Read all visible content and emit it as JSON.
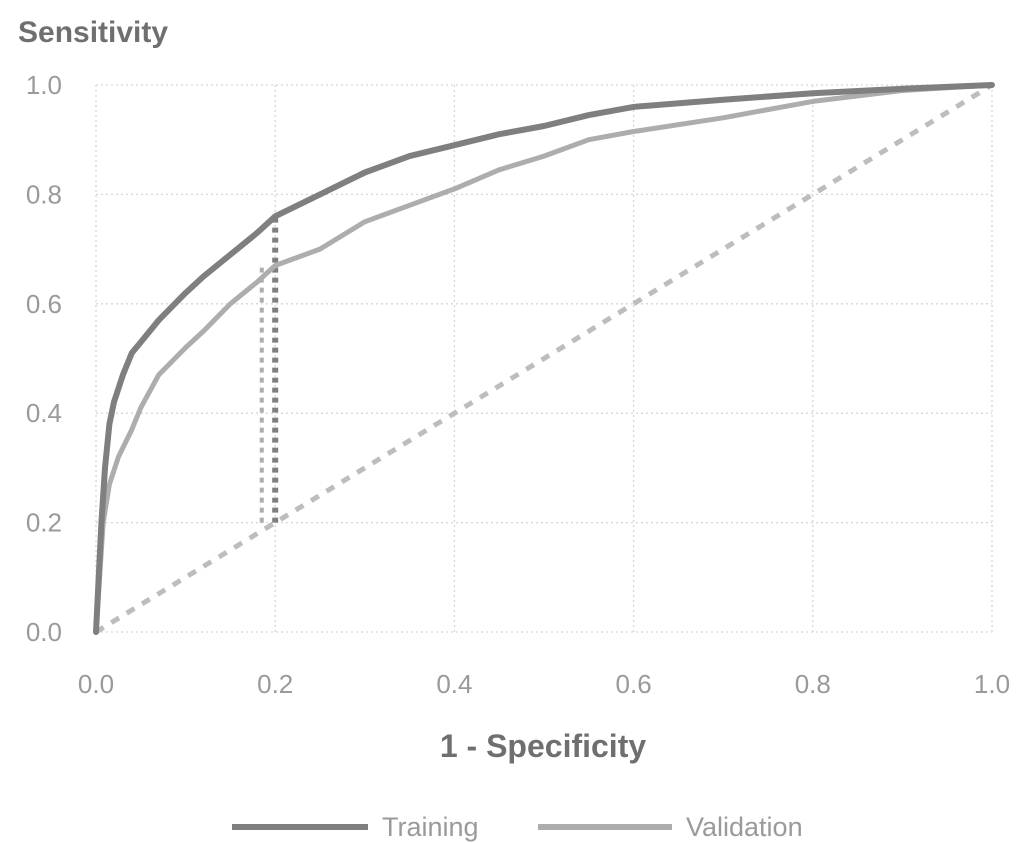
{
  "chart_data": {
    "type": "line",
    "ylabel": "Sensitivity",
    "xlabel": "1 - Specificity",
    "xlim": [
      0,
      1
    ],
    "ylim": [
      0,
      1
    ],
    "x_ticks": [
      "0.0",
      "0.2",
      "0.4",
      "0.6",
      "0.8",
      "1.0"
    ],
    "y_ticks": [
      "0.0",
      "0.2",
      "0.4",
      "0.6",
      "0.8",
      "1.0"
    ],
    "grid": true,
    "legend_position": "bottom",
    "series": [
      {
        "name": "Training",
        "color": "#7f7f7f",
        "points": [
          [
            0,
            0
          ],
          [
            0.003,
            0.1
          ],
          [
            0.006,
            0.2
          ],
          [
            0.01,
            0.3
          ],
          [
            0.015,
            0.38
          ],
          [
            0.02,
            0.42
          ],
          [
            0.03,
            0.47
          ],
          [
            0.04,
            0.51
          ],
          [
            0.05,
            0.53
          ],
          [
            0.07,
            0.57
          ],
          [
            0.1,
            0.62
          ],
          [
            0.12,
            0.65
          ],
          [
            0.15,
            0.69
          ],
          [
            0.18,
            0.73
          ],
          [
            0.2,
            0.76
          ],
          [
            0.25,
            0.8
          ],
          [
            0.3,
            0.84
          ],
          [
            0.35,
            0.87
          ],
          [
            0.4,
            0.89
          ],
          [
            0.45,
            0.91
          ],
          [
            0.5,
            0.925
          ],
          [
            0.55,
            0.945
          ],
          [
            0.6,
            0.96
          ],
          [
            0.7,
            0.973
          ],
          [
            0.8,
            0.985
          ],
          [
            0.9,
            0.993
          ],
          [
            1,
            1
          ]
        ]
      },
      {
        "name": "Validation",
        "color": "#adadad",
        "points": [
          [
            0,
            0
          ],
          [
            0.004,
            0.1
          ],
          [
            0.008,
            0.2
          ],
          [
            0.015,
            0.27
          ],
          [
            0.025,
            0.32
          ],
          [
            0.04,
            0.37
          ],
          [
            0.05,
            0.41
          ],
          [
            0.07,
            0.47
          ],
          [
            0.1,
            0.52
          ],
          [
            0.12,
            0.55
          ],
          [
            0.15,
            0.6
          ],
          [
            0.18,
            0.64
          ],
          [
            0.2,
            0.67
          ],
          [
            0.25,
            0.7
          ],
          [
            0.3,
            0.75
          ],
          [
            0.35,
            0.78
          ],
          [
            0.4,
            0.81
          ],
          [
            0.45,
            0.845
          ],
          [
            0.5,
            0.87
          ],
          [
            0.55,
            0.9
          ],
          [
            0.6,
            0.915
          ],
          [
            0.7,
            0.94
          ],
          [
            0.8,
            0.97
          ],
          [
            0.9,
            0.99
          ],
          [
            1,
            1
          ]
        ]
      }
    ],
    "reference_line": {
      "color": "#bdbdbd",
      "points": [
        [
          0,
          0
        ],
        [
          1,
          1
        ]
      ]
    },
    "cutoff_markers": [
      {
        "x": 0.2,
        "y_from": 0.2,
        "y_to": 0.76,
        "color": "#7f7f7f"
      },
      {
        "x": 0.185,
        "y_from": 0.2,
        "y_to": 0.67,
        "color": "#adadad"
      }
    ]
  }
}
